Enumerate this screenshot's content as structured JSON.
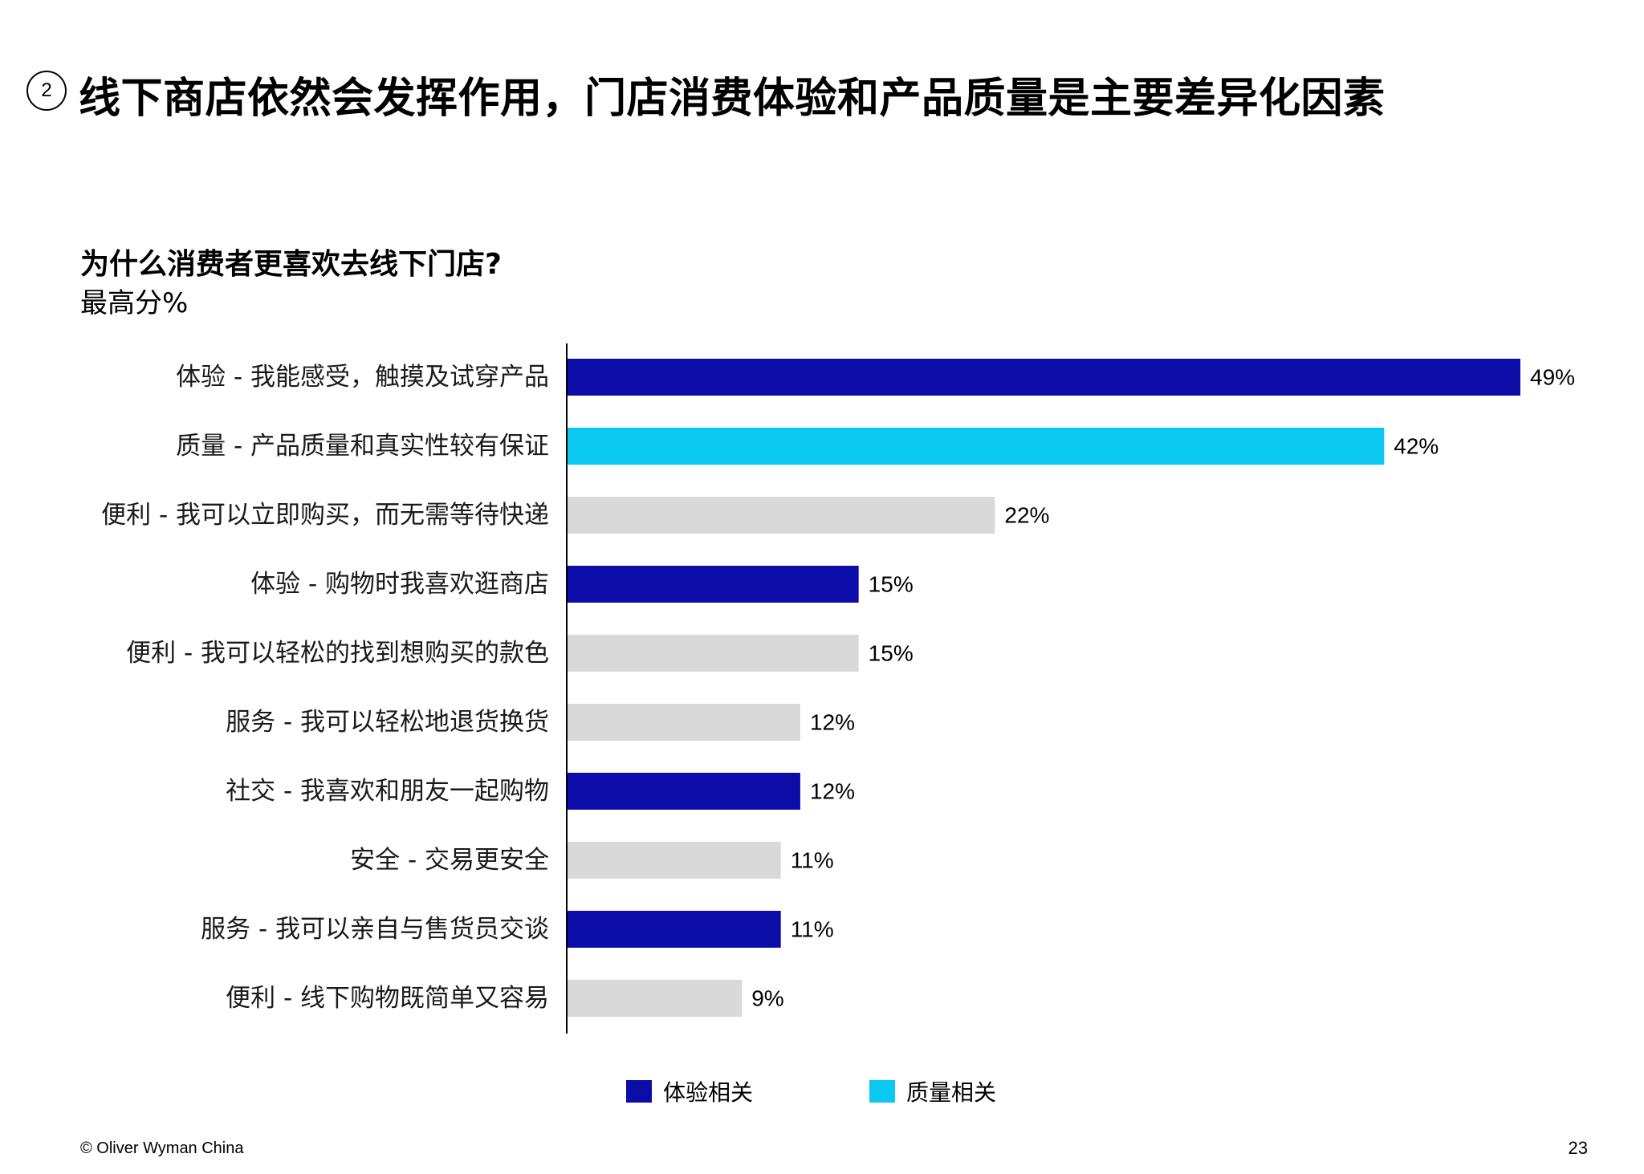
{
  "header": {
    "badge": "2",
    "title": "线下商店依然会发挥作用，门店消费体验和产品质量是主要差异化因素"
  },
  "chart_data": {
    "type": "bar",
    "orientation": "horizontal",
    "title": "为什么消费者更喜欢去线下门店?",
    "subtitle": "最高分%",
    "categories": [
      "体验 - 我能感受，触摸及试穿产品",
      "质量 - 产品质量和真实性较有保证",
      "便利 - 我可以立即购买，而无需等待快递",
      "体验 - 购物时我喜欢逛商店",
      "便利 - 我可以轻松的找到想购买的款色",
      "服务 - 我可以轻松地退货换货",
      "社交 - 我喜欢和朋友一起购物",
      "安全 - 交易更安全",
      "服务 - 我可以亲自与售货员交谈",
      "便利 - 线下购物既简单又容易"
    ],
    "values": [
      49,
      42,
      22,
      15,
      15,
      12,
      12,
      11,
      11,
      9
    ],
    "value_labels": [
      "49%",
      "42%",
      "22%",
      "15%",
      "15%",
      "12%",
      "12%",
      "11%",
      "11%",
      "9%"
    ],
    "groups": [
      "experience",
      "quality",
      "other",
      "experience",
      "other",
      "other",
      "experience",
      "other",
      "experience",
      "other"
    ],
    "colors": {
      "experience": "#0c0ca8",
      "quality": "#0ac8f0",
      "other": "#d9d9d9"
    },
    "xlim": [
      0,
      49
    ],
    "legend": {
      "position": "bottom-center",
      "items": [
        {
          "label": "体验相关",
          "group": "experience"
        },
        {
          "label": "质量相关",
          "group": "quality"
        }
      ]
    },
    "grid": false
  },
  "footer": {
    "source": "© Oliver Wyman China",
    "page": "23"
  }
}
